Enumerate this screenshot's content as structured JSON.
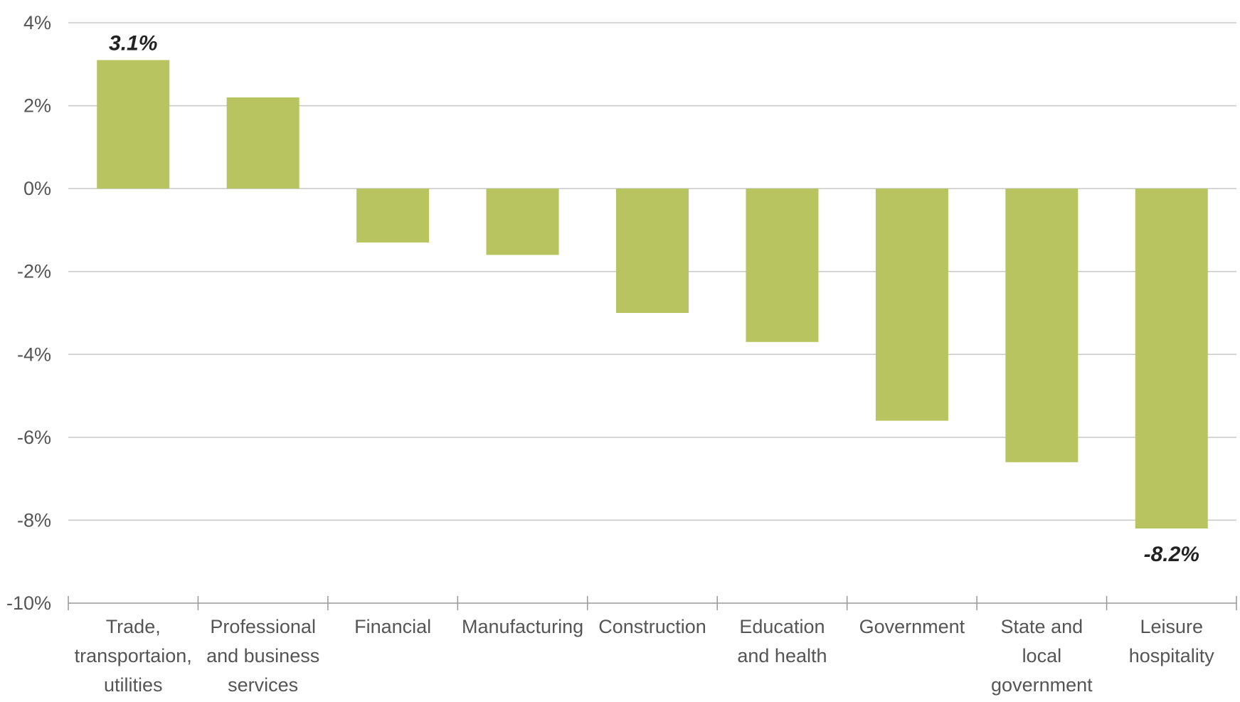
{
  "chart_data": {
    "type": "bar",
    "title": "",
    "xlabel": "",
    "ylabel": "",
    "ylim": [
      -10,
      4
    ],
    "y_ticks": [
      {
        "value": 4,
        "label": "4%"
      },
      {
        "value": 2,
        "label": "2%"
      },
      {
        "value": 0,
        "label": "0%"
      },
      {
        "value": -2,
        "label": "-2%"
      },
      {
        "value": -4,
        "label": "-4%"
      },
      {
        "value": -6,
        "label": "-6%"
      },
      {
        "value": -8,
        "label": "-8%"
      },
      {
        "value": -10,
        "label": "-10%"
      }
    ],
    "grid": true,
    "legend": "none",
    "categories": [
      [
        "Trade,",
        "transportaion,",
        "utilities"
      ],
      [
        "Professional",
        "and business",
        "services"
      ],
      [
        "Financial"
      ],
      [
        "Manufacturing"
      ],
      [
        "Construction"
      ],
      [
        "Education",
        "and health"
      ],
      [
        "Government"
      ],
      [
        "State and",
        "local",
        "government"
      ],
      [
        "Leisure",
        "hospitality"
      ]
    ],
    "values": [
      3.1,
      2.2,
      -1.3,
      -1.6,
      -3.0,
      -3.7,
      -5.6,
      -6.6,
      -8.2
    ],
    "data_labels": [
      {
        "index": 0,
        "text": "3.1%"
      },
      {
        "index": 8,
        "text": "-8.2%"
      }
    ],
    "colors": {
      "bar": "#b8c45f",
      "grid": "#c8c8c8",
      "axis": "#999999"
    }
  }
}
